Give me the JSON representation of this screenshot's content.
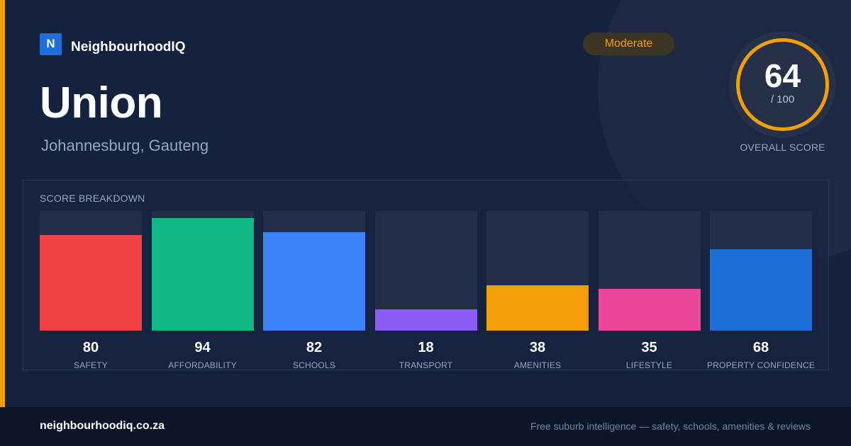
{
  "brand": {
    "logo_letter": "N",
    "name": "NeighbourhoodIQ"
  },
  "suburb": {
    "name": "Union",
    "location": "Johannesburg, Gauteng"
  },
  "rating": {
    "label": "Moderate",
    "color": "#f59e0b"
  },
  "overall": {
    "score": "64",
    "max": "/ 100",
    "label": "OVERALL SCORE",
    "value": 64,
    "max_value": 100
  },
  "panel": {
    "title": "SCORE BREAKDOWN"
  },
  "chart_data": {
    "type": "bar",
    "title": "SCORE BREAKDOWN",
    "categories": [
      "SAFETY",
      "AFFORDABILITY",
      "SCHOOLS",
      "TRANSPORT",
      "AMENITIES",
      "LIFESTYLE",
      "PROPERTY CONFIDENCE"
    ],
    "values": [
      80,
      94,
      82,
      18,
      38,
      35,
      68
    ],
    "colors": [
      "#ef4444",
      "#10b981",
      "#3b82f6",
      "#8b5cf6",
      "#f59e0b",
      "#ec4899",
      "#1d6fd8"
    ],
    "ylim": [
      0,
      100
    ],
    "grid": false
  },
  "footer": {
    "url": "neighbourhoodiq.co.za",
    "tagline": "Free suburb intelligence — safety, schools, amenities & reviews"
  }
}
